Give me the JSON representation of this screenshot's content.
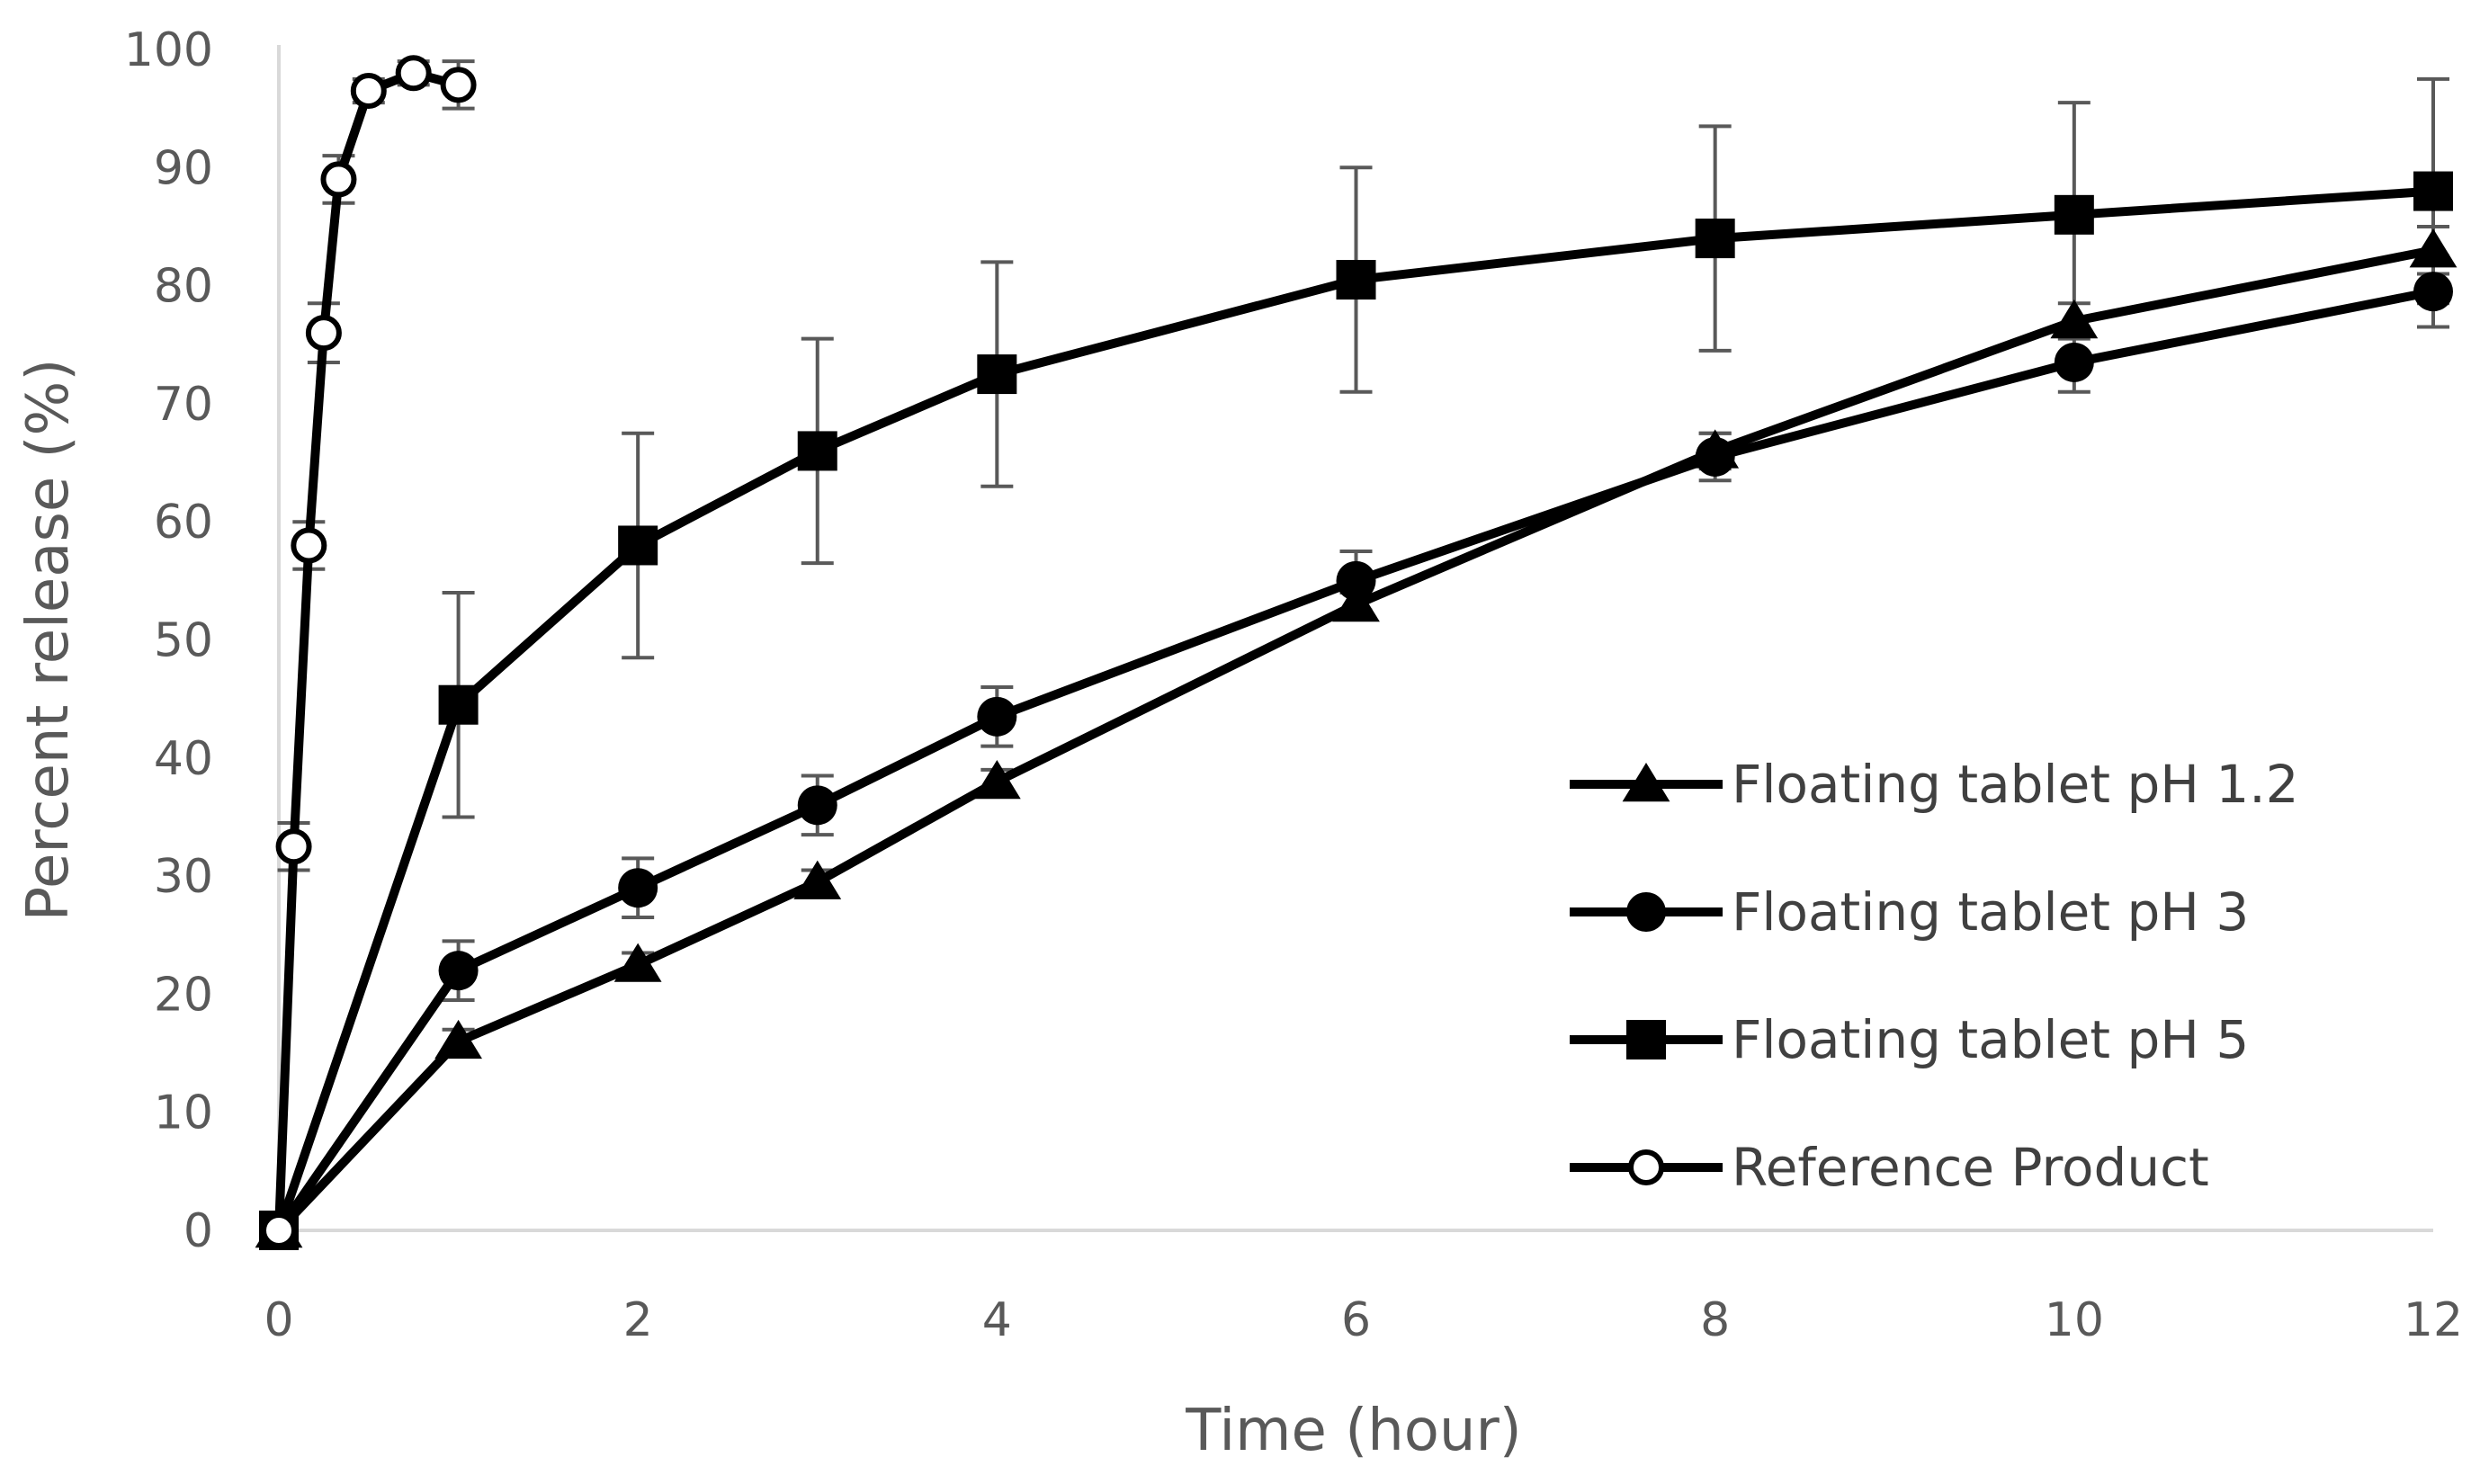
{
  "chart_data": {
    "type": "line",
    "title": "",
    "xlabel": "Time (hour)",
    "ylabel": "Percent release (%)",
    "xlim": [
      0,
      12
    ],
    "ylim": [
      0,
      100
    ],
    "x_ticks": [
      "0",
      "2",
      "4",
      "6",
      "8",
      "10",
      "12"
    ],
    "y_ticks": [
      "0",
      "10",
      "20",
      "30",
      "40",
      "50",
      "60",
      "70",
      "80",
      "90",
      "100"
    ],
    "grid": false,
    "legend_position": "bottom-right",
    "series": [
      {
        "name": "Floating tablet pH 1.2",
        "marker": "triangle",
        "x": [
          0,
          1,
          2,
          3,
          4,
          6,
          8,
          10,
          12
        ],
        "y": [
          0,
          16,
          22.5,
          29.5,
          38,
          53,
          66,
          77,
          83
        ],
        "err": [
          0,
          1,
          1,
          1,
          1,
          1,
          1.5,
          1.5,
          2
        ]
      },
      {
        "name": "Floating tablet pH 3",
        "marker": "circle",
        "x": [
          0,
          1,
          2,
          3,
          4,
          6,
          8,
          10,
          12
        ],
        "y": [
          0,
          22,
          29,
          36,
          43.5,
          55,
          65.5,
          73.5,
          79.5
        ],
        "err": [
          0,
          2.5,
          2.5,
          2.5,
          2.5,
          2.5,
          2,
          2.5,
          3
        ]
      },
      {
        "name": "Floating tablet pH 5",
        "marker": "square",
        "x": [
          0,
          1,
          2,
          3,
          4,
          6,
          8,
          10,
          12
        ],
        "y": [
          0,
          44.5,
          58,
          66,
          72.5,
          80.5,
          84,
          86,
          88
        ],
        "err": [
          0,
          9.5,
          9.5,
          9.5,
          9.5,
          9.5,
          9.5,
          9.5,
          9.5
        ]
      },
      {
        "name": "Reference Product",
        "marker": "open-circle",
        "x": [
          0,
          0.083,
          0.167,
          0.25,
          0.333,
          0.5,
          0.75,
          1
        ],
        "y": [
          0,
          32.5,
          58,
          76,
          89,
          96.5,
          98,
          97
        ],
        "err": [
          0,
          2,
          2,
          2.5,
          2,
          1,
          1,
          2
        ]
      }
    ]
  }
}
